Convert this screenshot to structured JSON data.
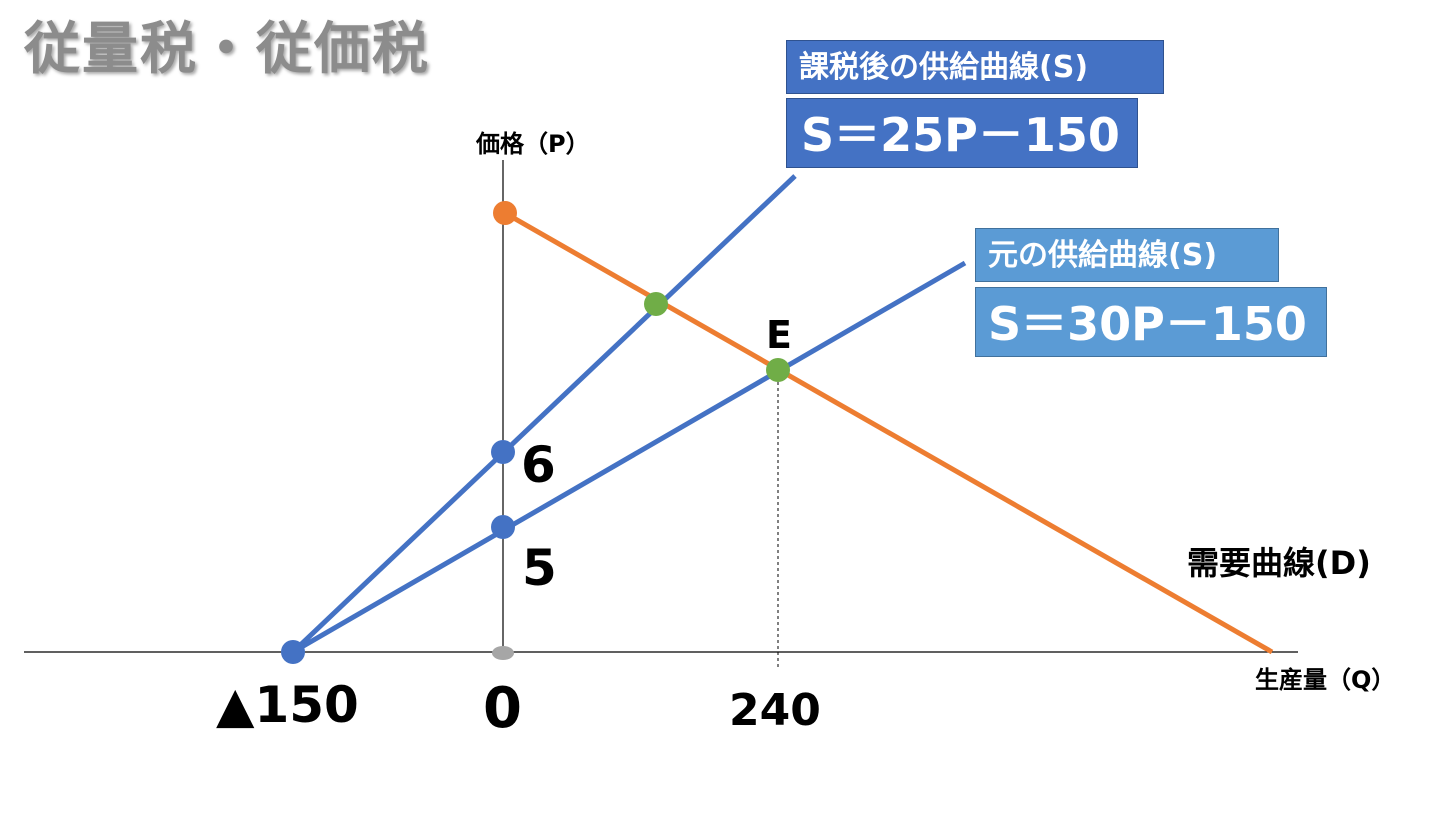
{
  "title": "従量税・従価税",
  "axis": {
    "y_label": "価格（P）",
    "x_label": "生産量（Q）",
    "x_ticks": [
      "▲150",
      "0",
      "240"
    ],
    "y_ticks": [
      "6",
      "5"
    ]
  },
  "after_tax_supply": {
    "label": "課税後の供給曲線(S)",
    "equation": "S＝25P－150",
    "color": "#4472c4"
  },
  "original_supply": {
    "label": "元の供給曲線(S)",
    "equation": "S＝30P－150",
    "color": "#5b9bd5"
  },
  "demand": {
    "label": "需要曲線(D)",
    "color": "#ed7d31"
  },
  "equilibrium_label": "E",
  "colors": {
    "supply_line": "#4472c4",
    "demand_line": "#ed7d31",
    "intersection_point": "#70ad47",
    "origin_point": "#a6a6a6"
  }
}
